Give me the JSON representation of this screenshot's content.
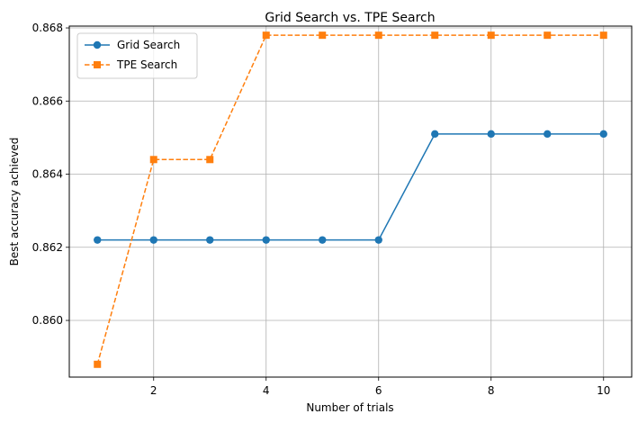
{
  "chart_data": {
    "type": "line",
    "title": "Grid Search vs. TPE Search",
    "xlabel": "Number of trials",
    "ylabel": "Best accuracy achieved",
    "x": [
      1,
      2,
      3,
      4,
      5,
      6,
      7,
      8,
      9,
      10
    ],
    "xlim": [
      0.5,
      10.5
    ],
    "ylim": [
      0.85845,
      0.86805
    ],
    "xticks": [
      2,
      4,
      6,
      8,
      10
    ],
    "yticks": [
      0.86,
      0.862,
      0.864,
      0.866,
      0.868
    ],
    "xtick_labels": [
      "2",
      "4",
      "6",
      "8",
      "10"
    ],
    "ytick_labels": [
      "0.860",
      "0.862",
      "0.864",
      "0.866",
      "0.868"
    ],
    "grid": true,
    "legend_position": "top-left",
    "series": [
      {
        "name": "Grid Search",
        "color": "#1f77b4",
        "line_style": "solid",
        "marker": "circle",
        "values": [
          0.8622,
          0.8622,
          0.8622,
          0.8622,
          0.8622,
          0.8622,
          0.8651,
          0.8651,
          0.8651,
          0.8651
        ]
      },
      {
        "name": "TPE Search",
        "color": "#ff7f0e",
        "line_style": "dashed",
        "marker": "square",
        "values": [
          0.8588,
          0.8644,
          0.8644,
          0.8678,
          0.8678,
          0.8678,
          0.8678,
          0.8678,
          0.8678,
          0.8678
        ]
      }
    ]
  }
}
